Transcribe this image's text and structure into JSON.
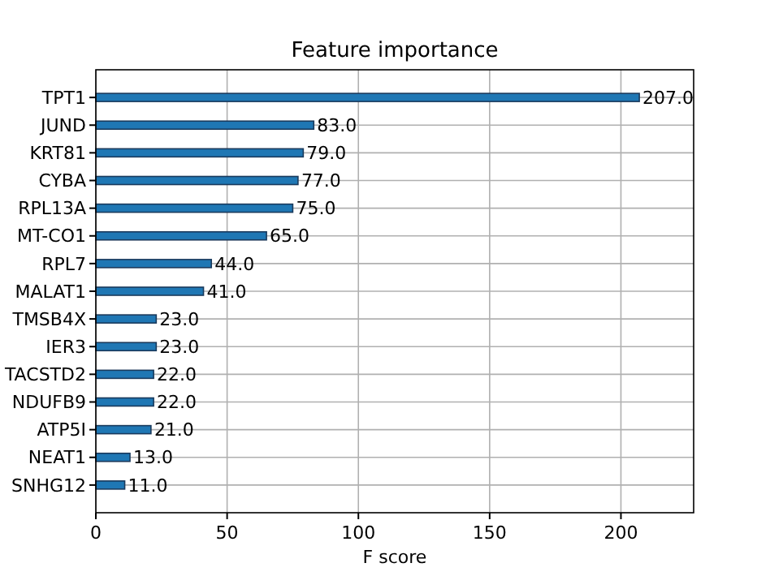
{
  "chart_data": {
    "type": "bar",
    "orientation": "horizontal",
    "title": "Feature importance",
    "xlabel": "F score",
    "categories": [
      "TPT1",
      "JUND",
      "KRT81",
      "CYBA",
      "RPL13A",
      "MT-CO1",
      "RPL7",
      "MALAT1",
      "TMSB4X",
      "IER3",
      "TACSTD2",
      "NDUFB9",
      "ATP5I",
      "NEAT1",
      "SNHG12"
    ],
    "values": [
      207,
      83,
      79,
      77,
      75,
      65,
      44,
      41,
      23,
      23,
      22,
      22,
      21,
      13,
      11
    ],
    "value_labels": [
      "207.0",
      "83.0",
      "79.0",
      "77.0",
      "75.0",
      "65.0",
      "44.0",
      "41.0",
      "23.0",
      "23.0",
      "22.0",
      "22.0",
      "21.0",
      "13.0",
      "11.0"
    ],
    "color": "#1f77b4",
    "xlim": [
      0,
      227.7
    ],
    "xticks": [
      0,
      50,
      100,
      150,
      200
    ],
    "grid": true
  }
}
